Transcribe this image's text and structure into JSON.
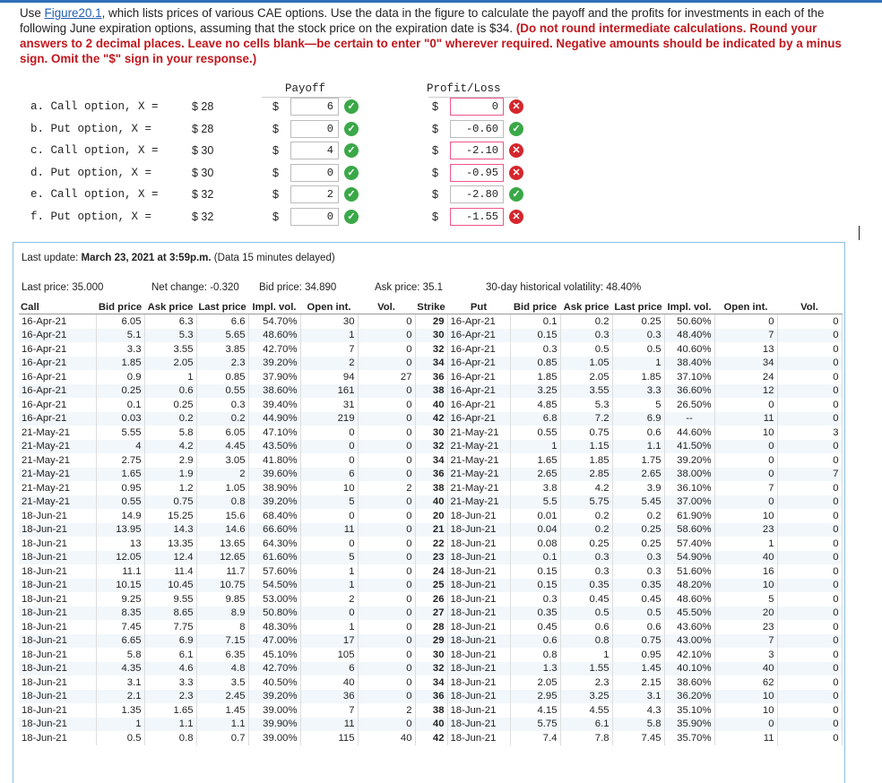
{
  "question": {
    "prefix": "Use ",
    "link": "Figure20.1",
    "body": ", which lists prices of various CAE options. Use the data in the figure to calculate the payoff and the profits for investments in each of the following June expiration options, assuming that the stock price on the expiration date is $34. ",
    "instructions": "(Do not round intermediate calculations. Round your answers to 2 decimal places. Leave no cells blank—be certain to enter \"0\" wherever required. Negative amounts should be indicated by a minus sign. Omit the \"$\" sign in your response.)"
  },
  "answer_table": {
    "payoff_header": "Payoff",
    "profit_header": "Profit/Loss",
    "currency": "$",
    "rows": [
      {
        "label": "a.  Call option, X =",
        "strike": "$ 28",
        "payoff": "6",
        "payoff_status": "correct",
        "profit": "0",
        "profit_status": "incorrect"
      },
      {
        "label": "b.  Put option, X =",
        "strike": "$ 28",
        "payoff": "0",
        "payoff_status": "correct",
        "profit": "-0.60",
        "profit_status": "correct"
      },
      {
        "label": "c.  Call option, X =",
        "strike": "$ 30",
        "payoff": "4",
        "payoff_status": "correct",
        "profit": "-2.10",
        "profit_status": "incorrect"
      },
      {
        "label": "d.  Put option, X =",
        "strike": "$ 30",
        "payoff": "0",
        "payoff_status": "correct",
        "profit": "-0.95",
        "profit_status": "incorrect"
      },
      {
        "label": "e.  Call option, X =",
        "strike": "$ 32",
        "payoff": "2",
        "payoff_status": "correct",
        "profit": "-2.80",
        "profit_status": "correct"
      },
      {
        "label": "f.  Put option, X =",
        "strike": "$ 32",
        "payoff": "0",
        "payoff_status": "correct",
        "profit": "-1.55",
        "profit_status": "incorrect"
      }
    ]
  },
  "figure": {
    "last_update_label": "Last update: ",
    "last_update_value": "March 23, 2021 at 3:59p.m.",
    "last_update_note": " (Data 15 minutes delayed)",
    "last_price": "Last price: 35.000",
    "net_change": "Net change: -0.320",
    "bid_price": "Bid price: 34.890",
    "ask_price": "Ask price: 35.1",
    "volatility": "30-day historical volatility: 48.40%",
    "columns": [
      "Call",
      "Bid price",
      "Ask price",
      "Last price",
      "Impl. vol.",
      "Open int.",
      "Vol.",
      "Strike",
      "Put",
      "Bid price",
      "Ask price",
      "Last price",
      "Impl. vol.",
      "Open int.",
      "Vol."
    ],
    "rows": [
      [
        "16-Apr-21",
        "6.05",
        "6.3",
        "6.6",
        "54.70%",
        "30",
        "0",
        "29",
        "16-Apr-21",
        "0.1",
        "0.2",
        "0.25",
        "50.60%",
        "0",
        "0"
      ],
      [
        "16-Apr-21",
        "5.1",
        "5.3",
        "5.65",
        "48.60%",
        "1",
        "0",
        "30",
        "16-Apr-21",
        "0.15",
        "0.3",
        "0.3",
        "48.40%",
        "7",
        "0"
      ],
      [
        "16-Apr-21",
        "3.3",
        "3.55",
        "3.85",
        "42.70%",
        "7",
        "0",
        "32",
        "16-Apr-21",
        "0.3",
        "0.5",
        "0.5",
        "40.60%",
        "13",
        "0"
      ],
      [
        "16-Apr-21",
        "1.85",
        "2.05",
        "2.3",
        "39.20%",
        "2",
        "0",
        "34",
        "16-Apr-21",
        "0.85",
        "1.05",
        "1",
        "38.40%",
        "34",
        "0"
      ],
      [
        "16-Apr-21",
        "0.9",
        "1",
        "0.85",
        "37.90%",
        "94",
        "27",
        "36",
        "16-Apr-21",
        "1.85",
        "2.05",
        "1.85",
        "37.10%",
        "24",
        "0"
      ],
      [
        "16-Apr-21",
        "0.25",
        "0.6",
        "0.55",
        "38.60%",
        "161",
        "0",
        "38",
        "16-Apr-21",
        "3.25",
        "3.55",
        "3.3",
        "36.60%",
        "12",
        "0"
      ],
      [
        "16-Apr-21",
        "0.1",
        "0.25",
        "0.3",
        "39.40%",
        "31",
        "0",
        "40",
        "16-Apr-21",
        "4.85",
        "5.3",
        "5",
        "26.50%",
        "0",
        "0"
      ],
      [
        "16-Apr-21",
        "0.03",
        "0.2",
        "0.2",
        "44.90%",
        "219",
        "0",
        "42",
        "16-Apr-21",
        "6.8",
        "7.2",
        "6.9",
        "--",
        "11",
        "0"
      ],
      [
        "21-May-21",
        "5.55",
        "5.8",
        "6.05",
        "47.10%",
        "0",
        "0",
        "30",
        "21-May-21",
        "0.55",
        "0.75",
        "0.6",
        "44.60%",
        "10",
        "3"
      ],
      [
        "21-May-21",
        "4",
        "4.2",
        "4.45",
        "43.50%",
        "0",
        "0",
        "32",
        "21-May-21",
        "1",
        "1.15",
        "1.1",
        "41.50%",
        "0",
        "0"
      ],
      [
        "21-May-21",
        "2.75",
        "2.9",
        "3.05",
        "41.80%",
        "0",
        "0",
        "34",
        "21-May-21",
        "1.65",
        "1.85",
        "1.75",
        "39.20%",
        "0",
        "0"
      ],
      [
        "21-May-21",
        "1.65",
        "1.9",
        "2",
        "39.60%",
        "6",
        "0",
        "36",
        "21-May-21",
        "2.65",
        "2.85",
        "2.65",
        "38.00%",
        "0",
        "7"
      ],
      [
        "21-May-21",
        "0.95",
        "1.2",
        "1.05",
        "38.90%",
        "10",
        "2",
        "38",
        "21-May-21",
        "3.8",
        "4.2",
        "3.9",
        "36.10%",
        "7",
        "0"
      ],
      [
        "21-May-21",
        "0.55",
        "0.75",
        "0.8",
        "39.20%",
        "5",
        "0",
        "40",
        "21-May-21",
        "5.5",
        "5.75",
        "5.45",
        "37.00%",
        "0",
        "0"
      ],
      [
        "18-Jun-21",
        "14.9",
        "15.25",
        "15.6",
        "68.40%",
        "0",
        "0",
        "20",
        "18-Jun-21",
        "0.01",
        "0.2",
        "0.2",
        "61.90%",
        "10",
        "0"
      ],
      [
        "18-Jun-21",
        "13.95",
        "14.3",
        "14.6",
        "66.60%",
        "11",
        "0",
        "21",
        "18-Jun-21",
        "0.04",
        "0.2",
        "0.25",
        "58.60%",
        "23",
        "0"
      ],
      [
        "18-Jun-21",
        "13",
        "13.35",
        "13.65",
        "64.30%",
        "0",
        "0",
        "22",
        "18-Jun-21",
        "0.08",
        "0.25",
        "0.25",
        "57.40%",
        "1",
        "0"
      ],
      [
        "18-Jun-21",
        "12.05",
        "12.4",
        "12.65",
        "61.60%",
        "5",
        "0",
        "23",
        "18-Jun-21",
        "0.1",
        "0.3",
        "0.3",
        "54.90%",
        "40",
        "0"
      ],
      [
        "18-Jun-21",
        "11.1",
        "11.4",
        "11.7",
        "57.60%",
        "1",
        "0",
        "24",
        "18-Jun-21",
        "0.15",
        "0.3",
        "0.3",
        "51.60%",
        "16",
        "0"
      ],
      [
        "18-Jun-21",
        "10.15",
        "10.45",
        "10.75",
        "54.50%",
        "1",
        "0",
        "25",
        "18-Jun-21",
        "0.15",
        "0.35",
        "0.35",
        "48.20%",
        "10",
        "0"
      ],
      [
        "18-Jun-21",
        "9.25",
        "9.55",
        "9.85",
        "53.00%",
        "2",
        "0",
        "26",
        "18-Jun-21",
        "0.3",
        "0.45",
        "0.45",
        "48.60%",
        "5",
        "0"
      ],
      [
        "18-Jun-21",
        "8.35",
        "8.65",
        "8.9",
        "50.80%",
        "0",
        "0",
        "27",
        "18-Jun-21",
        "0.35",
        "0.5",
        "0.5",
        "45.50%",
        "20",
        "0"
      ],
      [
        "18-Jun-21",
        "7.45",
        "7.75",
        "8",
        "48.30%",
        "1",
        "0",
        "28",
        "18-Jun-21",
        "0.45",
        "0.6",
        "0.6",
        "43.60%",
        "23",
        "0"
      ],
      [
        "18-Jun-21",
        "6.65",
        "6.9",
        "7.15",
        "47.00%",
        "17",
        "0",
        "29",
        "18-Jun-21",
        "0.6",
        "0.8",
        "0.75",
        "43.00%",
        "7",
        "0"
      ],
      [
        "18-Jun-21",
        "5.8",
        "6.1",
        "6.35",
        "45.10%",
        "105",
        "0",
        "30",
        "18-Jun-21",
        "0.8",
        "1",
        "0.95",
        "42.10%",
        "3",
        "0"
      ],
      [
        "18-Jun-21",
        "4.35",
        "4.6",
        "4.8",
        "42.70%",
        "6",
        "0",
        "32",
        "18-Jun-21",
        "1.3",
        "1.55",
        "1.45",
        "40.10%",
        "40",
        "0"
      ],
      [
        "18-Jun-21",
        "3.1",
        "3.3",
        "3.5",
        "40.50%",
        "40",
        "0",
        "34",
        "18-Jun-21",
        "2.05",
        "2.3",
        "2.15",
        "38.60%",
        "62",
        "0"
      ],
      [
        "18-Jun-21",
        "2.1",
        "2.3",
        "2.45",
        "39.20%",
        "36",
        "0",
        "36",
        "18-Jun-21",
        "2.95",
        "3.25",
        "3.1",
        "36.20%",
        "10",
        "0"
      ],
      [
        "18-Jun-21",
        "1.35",
        "1.65",
        "1.45",
        "39.00%",
        "7",
        "2",
        "38",
        "18-Jun-21",
        "4.15",
        "4.55",
        "4.3",
        "35.10%",
        "10",
        "0"
      ],
      [
        "18-Jun-21",
        "1",
        "1.1",
        "1.1",
        "39.90%",
        "11",
        "0",
        "40",
        "18-Jun-21",
        "5.75",
        "6.1",
        "5.8",
        "35.90%",
        "0",
        "0"
      ],
      [
        "18-Jun-21",
        "0.5",
        "0.8",
        "0.7",
        "39.00%",
        "115",
        "40",
        "42",
        "18-Jun-21",
        "7.4",
        "7.8",
        "7.45",
        "35.70%",
        "11",
        "0"
      ]
    ]
  },
  "colors": {
    "accent": "#2d6fb7",
    "correct": "#3aa848",
    "incorrect": "#d6252c",
    "instruction": "#c0181e",
    "panel_border": "#8cc0e0"
  }
}
